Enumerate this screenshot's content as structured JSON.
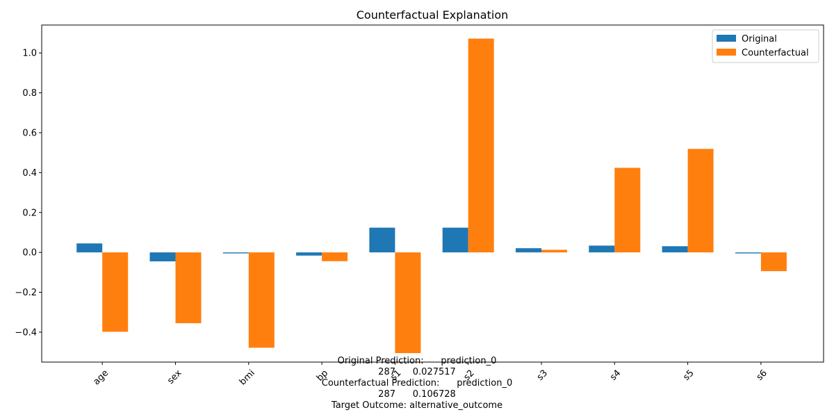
{
  "chart_data": {
    "type": "bar",
    "title": "Counterfactual Explanation",
    "xlabel": "",
    "ylabel": "",
    "categories": [
      "age",
      "sex",
      "bmi",
      "bp",
      "s1",
      "s2",
      "s3",
      "s4",
      "s5",
      "s6"
    ],
    "series": [
      {
        "name": "Original",
        "color": "#1f77b4",
        "values": [
          0.045,
          -0.045,
          -0.005,
          -0.016,
          0.124,
          0.124,
          0.021,
          0.034,
          0.031,
          -0.005
        ]
      },
      {
        "name": "Counterfactual",
        "color": "#ff7f0e",
        "values": [
          -0.398,
          -0.355,
          -0.478,
          -0.044,
          -0.505,
          1.072,
          0.013,
          0.424,
          0.519,
          -0.094
        ]
      }
    ],
    "ylim": [
      -0.55,
      1.14
    ],
    "yticks": [
      -0.4,
      -0.2,
      0.0,
      0.2,
      0.4,
      0.6,
      0.8,
      1.0
    ],
    "ytick_labels": [
      "−0.4",
      "−0.2",
      "0.0",
      "0.2",
      "0.4",
      "0.6",
      "0.8",
      "1.0"
    ],
    "grid": false,
    "legend_position": "top-right",
    "annotation_lines": [
      "Original Prediction:      prediction_0",
      "287      0.027517",
      "Counterfactual Prediction:      prediction_0",
      "287      0.106728",
      "Target Outcome: alternative_outcome"
    ]
  }
}
